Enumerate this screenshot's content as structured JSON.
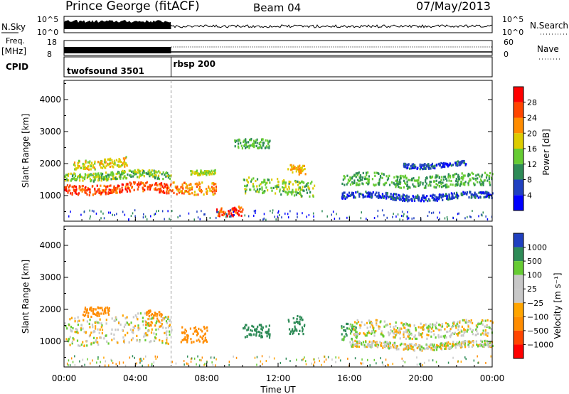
{
  "header": {
    "radar": "Prince George (fitACF)",
    "beam": "Beam 04",
    "date": "07/May/2013"
  },
  "sky_panel": {
    "left_label": "N.Sky",
    "left_ticks": [
      "10^5",
      "10^0"
    ],
    "right_ticks": [
      "10^5",
      "10^0"
    ],
    "right_label": "N.Search"
  },
  "freq_panel": {
    "left_label_line1": "Freq.",
    "left_label_line2": "[MHz]",
    "left_ticks": [
      "18",
      "8"
    ],
    "right_ticks": [
      "60",
      "0"
    ],
    "right_label": "Nave"
  },
  "cpid_panel": {
    "label": "CPID",
    "modes": [
      {
        "name": "twofsound 3501",
        "start_hour": 0
      },
      {
        "name": "rbsp 200",
        "start_hour": 6
      }
    ]
  },
  "chart_data": [
    {
      "type": "heatmap",
      "variable": "power",
      "ylabel": "Slant Range [km]",
      "y_ticks": [
        "1000",
        "2000",
        "3000",
        "4000"
      ],
      "ylim": [
        200,
        4600
      ],
      "xlim": [
        0,
        24
      ],
      "colorbar": {
        "label": "Power [dB]",
        "ticks": [
          "4",
          "8",
          "12",
          "16",
          "20",
          "24",
          "28"
        ],
        "range": [
          0,
          32
        ],
        "colors": [
          "#0000ff",
          "#2040c0",
          "#2e8b57",
          "#66cc33",
          "#ddcc00",
          "#ff8c00",
          "#ff4500",
          "#ff0000"
        ]
      },
      "echo_bands": [
        {
          "start_hour": 0.0,
          "end_hour": 6.0,
          "range_km": 1250,
          "width_km": 300,
          "power_db": 26
        },
        {
          "start_hour": 0.0,
          "end_hour": 6.0,
          "range_km": 1650,
          "width_km": 250,
          "power_db": 14
        },
        {
          "start_hour": 0.5,
          "end_hour": 3.5,
          "range_km": 2050,
          "width_km": 300,
          "power_db": 18
        },
        {
          "start_hour": 6.0,
          "end_hour": 8.5,
          "range_km": 1300,
          "width_km": 400,
          "power_db": 22
        },
        {
          "start_hour": 7.0,
          "end_hour": 8.5,
          "range_km": 1800,
          "width_km": 150,
          "power_db": 16
        },
        {
          "start_hour": 8.5,
          "end_hour": 10.0,
          "range_km": 500,
          "width_km": 300,
          "power_db": 26
        },
        {
          "start_hour": 9.5,
          "end_hour": 11.5,
          "range_km": 2600,
          "width_km": 300,
          "power_db": 12
        },
        {
          "start_hour": 10.0,
          "end_hour": 14.0,
          "range_km": 1300,
          "width_km": 500,
          "power_db": 14
        },
        {
          "start_hour": 12.5,
          "end_hour": 13.5,
          "range_km": 1900,
          "width_km": 300,
          "power_db": 20
        },
        {
          "start_hour": 15.5,
          "end_hour": 24.0,
          "range_km": 1500,
          "width_km": 400,
          "power_db": 12
        },
        {
          "start_hour": 15.5,
          "end_hour": 24.0,
          "range_km": 1000,
          "width_km": 200,
          "power_db": 6
        },
        {
          "start_hour": 19.0,
          "end_hour": 22.5,
          "range_km": 2000,
          "width_km": 150,
          "power_db": 6
        }
      ]
    },
    {
      "type": "heatmap",
      "variable": "velocity",
      "ylabel": "Slant Range [km]",
      "y_ticks": [
        "1000",
        "2000",
        "3000",
        "4000"
      ],
      "ylim": [
        200,
        4600
      ],
      "xlim": [
        0,
        24
      ],
      "x_ticks": [
        "00:00",
        "04:00",
        "08:00",
        "12:00",
        "16:00",
        "20:00",
        "00:00"
      ],
      "xlabel": "Time UT",
      "ground_scatter_color": "#c8c8c8",
      "colorbar": {
        "label": "Velocity [m s⁻¹]",
        "ticks": [
          "1000",
          "500",
          "100",
          "25",
          "−25",
          "−100",
          "−500",
          "−1000"
        ],
        "colors": [
          "#2040c0",
          "#2e8b57",
          "#66cc33",
          "#c8c8c8",
          "#c8c8c8",
          "#ffa500",
          "#ff8c00",
          "#ff4500",
          "#ff0000"
        ]
      },
      "echo_bands": [
        {
          "start_hour": 0.0,
          "end_hour": 6.0,
          "range_km": 1400,
          "width_km": 900,
          "velocity": 0
        },
        {
          "start_hour": 1.0,
          "end_hour": 2.5,
          "range_km": 2000,
          "width_km": 300,
          "velocity": -300
        },
        {
          "start_hour": 4.5,
          "end_hour": 5.5,
          "range_km": 1700,
          "width_km": 500,
          "velocity": -300
        },
        {
          "start_hour": 6.5,
          "end_hour": 8.0,
          "range_km": 1300,
          "width_km": 500,
          "velocity": -300
        },
        {
          "start_hour": 10.0,
          "end_hour": 11.5,
          "range_km": 1300,
          "width_km": 400,
          "velocity": 300
        },
        {
          "start_hour": 12.5,
          "end_hour": 13.5,
          "range_km": 1600,
          "width_km": 600,
          "velocity": 300
        },
        {
          "start_hour": 15.5,
          "end_hour": 16.5,
          "range_km": 1300,
          "width_km": 500,
          "velocity": 100
        },
        {
          "start_hour": 16.0,
          "end_hour": 24.0,
          "range_km": 1400,
          "width_km": 500,
          "velocity": 0
        },
        {
          "start_hour": 16.0,
          "end_hour": 24.0,
          "range_km": 900,
          "width_km": 200,
          "velocity": 0
        }
      ]
    }
  ]
}
